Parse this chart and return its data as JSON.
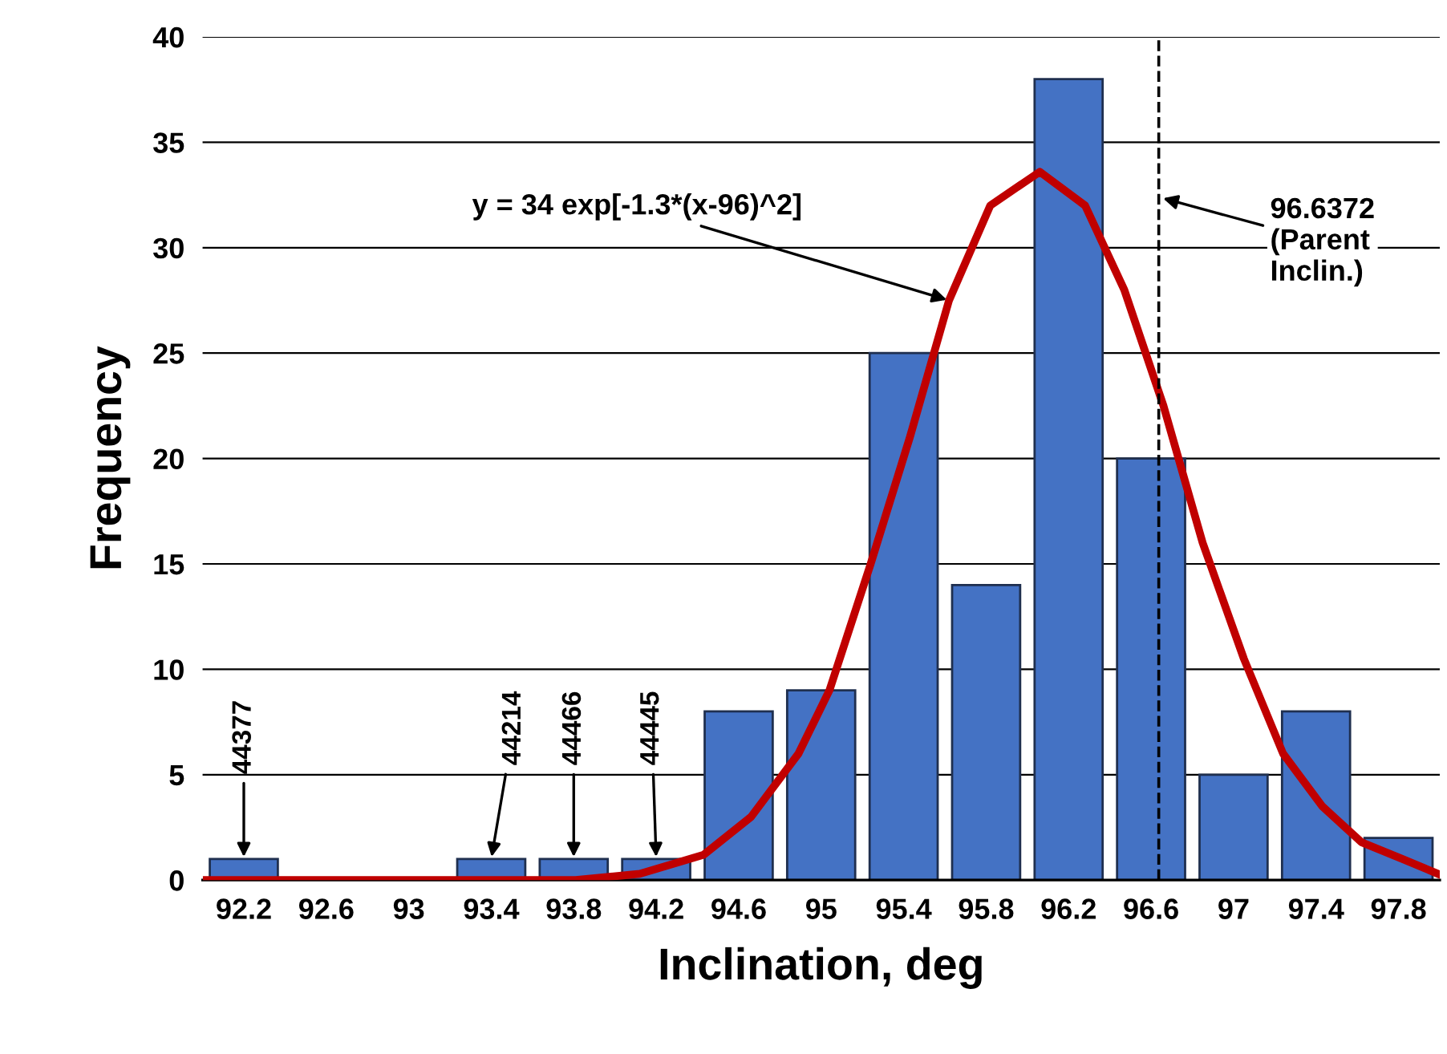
{
  "chart_data": {
    "type": "bar",
    "xlabel": "Inclination, deg",
    "ylabel": "Frequency",
    "xlim": [
      92.0,
      98.0
    ],
    "xticks": [
      92.2,
      92.6,
      93,
      93.4,
      93.8,
      94.2,
      94.6,
      95,
      95.4,
      95.8,
      96.2,
      96.6,
      97,
      97.4,
      97.8
    ],
    "ylim": [
      0,
      40
    ],
    "yticks": [
      0,
      5,
      10,
      15,
      20,
      25,
      30,
      35,
      40
    ],
    "grid": "y",
    "series": [
      {
        "color": "#4472c4",
        "x": [
          92.2,
          92.6,
          93,
          93.4,
          93.8,
          94.2,
          94.6,
          95,
          95.4,
          95.8,
          96.2,
          96.6,
          97,
          97.4,
          97.8
        ],
        "values": [
          1,
          0,
          0,
          1,
          1,
          1,
          8,
          9,
          25,
          14,
          38,
          20,
          5,
          8,
          2
        ]
      },
      {
        "type": "line",
        "color": "#c00000",
        "x": [
          92.02,
          93.81,
          94.12,
          94.43,
          94.66,
          94.89,
          95.04,
          95.24,
          95.43,
          95.62,
          95.82,
          96.06,
          96.28,
          96.47,
          96.66,
          96.85,
          97.05,
          97.24,
          97.43,
          97.62,
          97.82,
          97.99
        ],
        "values": [
          0,
          0,
          0.3,
          1.2,
          3,
          6,
          9,
          15,
          21,
          27.5,
          32,
          33.6,
          32,
          28,
          22.5,
          16,
          10.5,
          6,
          3.5,
          1.8,
          1,
          0.3
        ]
      }
    ],
    "ref_lines": [
      {
        "axis": "x",
        "value": 96.6372,
        "label": "96.6372\n(Parent\nInclin.)",
        "color": "#000000",
        "line_style": "dashed"
      }
    ],
    "annotations": [
      {
        "text": "y = 34 exp[-1.3*(x-96)^2]",
        "x": 95.62,
        "y": 27.5
      },
      {
        "text": "44377",
        "x": 92.2,
        "y": 1
      },
      {
        "text": "44214",
        "x": 93.4,
        "y": 1
      },
      {
        "text": "44466",
        "x": 93.8,
        "y": 1
      },
      {
        "text": "44445",
        "x": 94.2,
        "y": 1
      }
    ]
  }
}
